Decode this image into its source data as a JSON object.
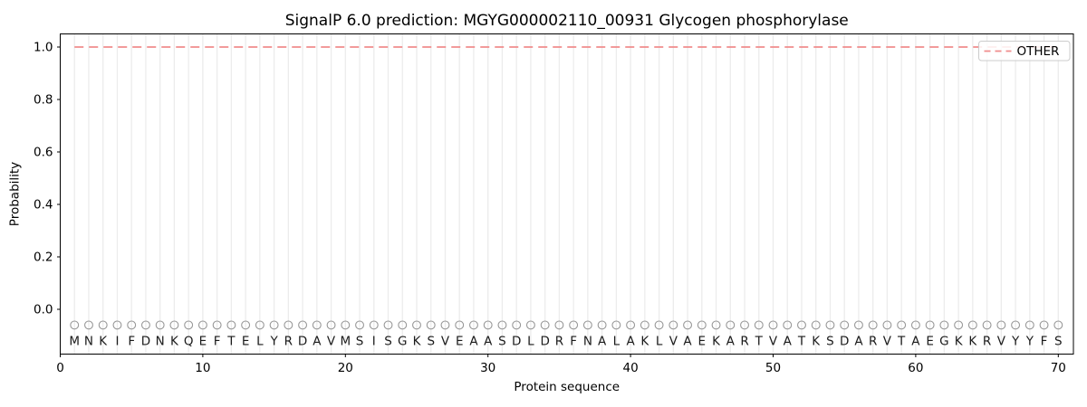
{
  "figure": {
    "title": "SignalP 6.0 prediction: MGYG000002110_00931 Glycogen phosphorylase",
    "xlabel": "Protein sequence",
    "ylabel": "Probability",
    "legend": {
      "label": "OTHER",
      "position": "upper right"
    }
  },
  "colors": {
    "other_line": "#f08c8c",
    "grid": "#ececec",
    "marker_stroke": "#979797",
    "spine": "#000000",
    "tick_text": "#000000",
    "letter_text": "#1a1a1a",
    "legend_border": "#cccccc",
    "background": "#ffffff"
  },
  "axes": {
    "ytick_labels": [
      "0.0",
      "0.2",
      "0.4",
      "0.6",
      "0.8",
      "1.0"
    ],
    "xtick_labels": [
      "0",
      "10",
      "20",
      "30",
      "40",
      "50",
      "60",
      "70"
    ]
  },
  "chart_data": {
    "type": "line",
    "title": "SignalP 6.0 prediction: MGYG000002110_00931 Glycogen phosphorylase",
    "xlabel": "Protein sequence",
    "ylabel": "Probability",
    "xlim": [
      0,
      71
    ],
    "ylim": [
      -0.17,
      1.05
    ],
    "xticks": [
      0,
      10,
      20,
      30,
      40,
      50,
      60,
      70
    ],
    "yticks": [
      0.0,
      0.2,
      0.4,
      0.6,
      0.8,
      1.0
    ],
    "grid": "vertical gridline at every residue position 1-70",
    "legend_position": "upper right",
    "sequence": "MNKIFDNKQEFTELYRDAVMSISGKSVEAASDLDRFNALAKLVAEKARTVATKSDARVTAEGKKRVYYFS",
    "series": [
      {
        "name": "OTHER",
        "style": "dashed",
        "color": "#f08c8c",
        "x": {
          "start": 1,
          "end": 70,
          "step": 1
        },
        "values": [
          1.0,
          1.0,
          1.0,
          1.0,
          1.0,
          1.0,
          1.0,
          1.0,
          1.0,
          1.0,
          1.0,
          1.0,
          1.0,
          1.0,
          1.0,
          1.0,
          1.0,
          1.0,
          1.0,
          1.0,
          1.0,
          1.0,
          1.0,
          1.0,
          1.0,
          1.0,
          1.0,
          1.0,
          1.0,
          1.0,
          1.0,
          1.0,
          1.0,
          1.0,
          1.0,
          1.0,
          1.0,
          1.0,
          1.0,
          1.0,
          1.0,
          1.0,
          1.0,
          1.0,
          1.0,
          1.0,
          1.0,
          1.0,
          1.0,
          1.0,
          1.0,
          1.0,
          1.0,
          1.0,
          1.0,
          1.0,
          1.0,
          1.0,
          1.0,
          1.0,
          1.0,
          1.0,
          1.0,
          1.0,
          1.0,
          1.0,
          1.0,
          1.0,
          1.0,
          1.0
        ]
      }
    ],
    "residue_markers": {
      "shape": "circle",
      "y": -0.06,
      "fill": "none",
      "stroke": "#979797",
      "per_position": true
    }
  }
}
